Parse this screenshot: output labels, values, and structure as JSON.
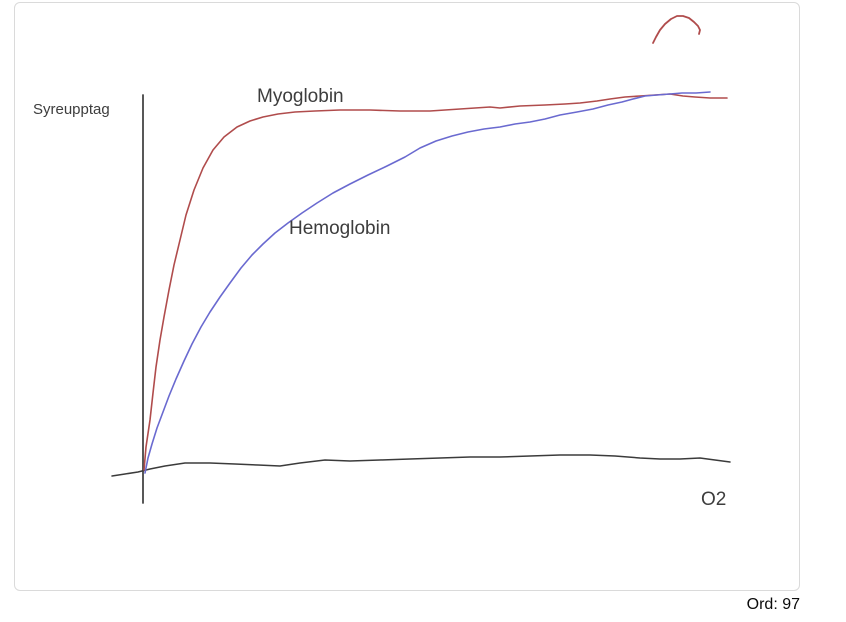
{
  "footer": {
    "word_count": "Ord: 97"
  },
  "labels": {
    "ylabel": "Syreupptag",
    "myoglobin": "Myoglobin",
    "hemoglobin": "Hemoglobin",
    "xlabel": "O2"
  },
  "colors": {
    "myoglobin": "#b04c4c",
    "hemoglobin": "#6a6ad0",
    "ink_black": "#3b3b3b",
    "axis": "#454545",
    "canvas_border": "#dadada"
  },
  "chart_data": {
    "type": "line",
    "title": "",
    "ylabel": "Syreupptag",
    "xlabel": "O2",
    "axes": {
      "x_ticks": [],
      "y_ticks": [],
      "grid": false,
      "note": "hand-drawn sketch, axes unlabeled/qualitative"
    },
    "legend": {
      "position": "inline-annotations"
    },
    "series": [
      {
        "name": "y-axis-line",
        "kind": "axis",
        "color": "#454545",
        "width": 1.8,
        "points": [
          [
            143,
            95
          ],
          [
            143,
            503
          ]
        ]
      },
      {
        "name": "x-axis-stroke",
        "kind": "axis",
        "color": "#3b3b3b",
        "width": 1.5,
        "points": [
          [
            112,
            476
          ],
          [
            125,
            474
          ],
          [
            138,
            472
          ],
          [
            150,
            469
          ],
          [
            165,
            466
          ],
          [
            185,
            463
          ],
          [
            210,
            463
          ],
          [
            235,
            464
          ],
          [
            258,
            465
          ],
          [
            280,
            466
          ],
          [
            300,
            463
          ],
          [
            325,
            460
          ],
          [
            350,
            461
          ],
          [
            380,
            460
          ],
          [
            410,
            459
          ],
          [
            440,
            458
          ],
          [
            470,
            457
          ],
          [
            500,
            457
          ],
          [
            530,
            456
          ],
          [
            560,
            455
          ],
          [
            590,
            455
          ],
          [
            615,
            456
          ],
          [
            640,
            458
          ],
          [
            660,
            459
          ],
          [
            680,
            459
          ],
          [
            700,
            458
          ],
          [
            715,
            460
          ],
          [
            730,
            462
          ]
        ]
      },
      {
        "name": "myoglobin-curve",
        "kind": "data",
        "color": "#b04c4c",
        "width": 1.6,
        "points": [
          [
            144,
            470
          ],
          [
            146,
            447
          ],
          [
            150,
            420
          ],
          [
            153,
            393
          ],
          [
            156,
            367
          ],
          [
            160,
            340
          ],
          [
            164,
            317
          ],
          [
            169,
            290
          ],
          [
            174,
            265
          ],
          [
            180,
            240
          ],
          [
            186,
            215
          ],
          [
            194,
            190
          ],
          [
            203,
            168
          ],
          [
            213,
            150
          ],
          [
            224,
            137
          ],
          [
            237,
            127
          ],
          [
            250,
            121
          ],
          [
            263,
            117
          ],
          [
            278,
            114
          ],
          [
            295,
            112
          ],
          [
            315,
            111
          ],
          [
            340,
            110
          ],
          [
            370,
            110
          ],
          [
            400,
            111
          ],
          [
            430,
            111
          ],
          [
            460,
            109
          ],
          [
            490,
            107
          ],
          [
            500,
            108
          ],
          [
            520,
            106
          ],
          [
            545,
            105
          ],
          [
            565,
            104
          ],
          [
            580,
            103
          ],
          [
            597,
            101
          ],
          [
            610,
            99
          ],
          [
            625,
            97
          ],
          [
            640,
            96
          ],
          [
            655,
            95
          ],
          [
            670,
            94
          ],
          [
            683,
            96
          ],
          [
            695,
            97
          ],
          [
            710,
            98
          ],
          [
            727,
            98
          ]
        ]
      },
      {
        "name": "hemoglobin-curve",
        "kind": "data",
        "color": "#6a6ad0",
        "width": 1.6,
        "points": [
          [
            145,
            473
          ],
          [
            148,
            458
          ],
          [
            152,
            444
          ],
          [
            157,
            428
          ],
          [
            163,
            412
          ],
          [
            169,
            396
          ],
          [
            176,
            379
          ],
          [
            184,
            361
          ],
          [
            192,
            344
          ],
          [
            201,
            327
          ],
          [
            210,
            312
          ],
          [
            220,
            297
          ],
          [
            230,
            283
          ],
          [
            241,
            268
          ],
          [
            252,
            255
          ],
          [
            263,
            244
          ],
          [
            275,
            233
          ],
          [
            288,
            223
          ],
          [
            302,
            213
          ],
          [
            317,
            203
          ],
          [
            333,
            193
          ],
          [
            350,
            184
          ],
          [
            368,
            175
          ],
          [
            387,
            166
          ],
          [
            405,
            157
          ],
          [
            420,
            148
          ],
          [
            436,
            141
          ],
          [
            452,
            136
          ],
          [
            468,
            132
          ],
          [
            484,
            129
          ],
          [
            500,
            127
          ],
          [
            515,
            124
          ],
          [
            530,
            122
          ],
          [
            545,
            119
          ],
          [
            560,
            115
          ],
          [
            577,
            112
          ],
          [
            593,
            109
          ],
          [
            608,
            105
          ],
          [
            622,
            102
          ],
          [
            633,
            99
          ],
          [
            645,
            96
          ],
          [
            657,
            95
          ],
          [
            670,
            94
          ],
          [
            682,
            93
          ],
          [
            696,
            93
          ],
          [
            710,
            92
          ]
        ]
      },
      {
        "name": "stray-red-arc",
        "kind": "stray-stroke",
        "color": "#b04c4c",
        "width": 1.8,
        "points": [
          [
            653,
            43
          ],
          [
            656,
            37
          ],
          [
            660,
            30
          ],
          [
            665,
            24
          ],
          [
            671,
            19
          ],
          [
            677,
            16
          ],
          [
            683,
            16
          ],
          [
            689,
            18
          ],
          [
            694,
            22
          ],
          [
            698,
            26
          ],
          [
            700,
            30
          ],
          [
            699,
            34
          ]
        ]
      }
    ],
    "annotations": [
      {
        "text": "Syreupptag",
        "role": "y-axis-label"
      },
      {
        "text": "Myoglobin",
        "role": "series-label"
      },
      {
        "text": "Hemoglobin",
        "role": "series-label"
      },
      {
        "text": "O2",
        "role": "x-axis-label"
      }
    ]
  }
}
